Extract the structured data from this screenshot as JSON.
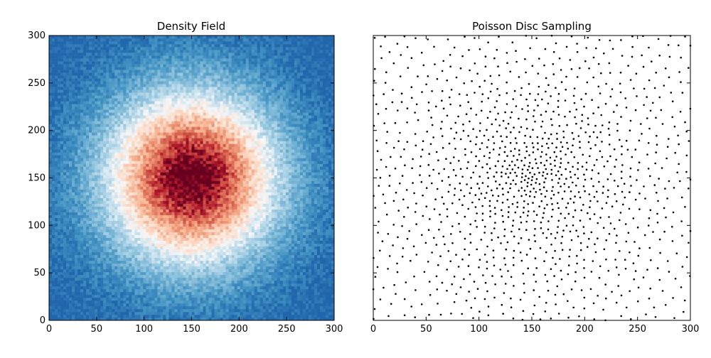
{
  "chart_data": [
    {
      "type": "heatmap",
      "title": "Density Field",
      "xlabel": "",
      "ylabel": "",
      "xlim": [
        0,
        300
      ],
      "ylim": [
        0,
        300
      ],
      "x_ticks": [
        "0",
        "50",
        "100",
        "150",
        "200",
        "250",
        "300"
      ],
      "y_ticks": [
        "0",
        "50",
        "100",
        "150",
        "200",
        "250",
        "300"
      ],
      "colormap": "RdBu_r",
      "center": [
        150,
        150
      ],
      "grid": false,
      "colors": {
        "low": "#2166ac",
        "mid": "#f7f7f7",
        "high": "#67001f"
      }
    },
    {
      "type": "scatter",
      "title": "Poisson Disc Sampling",
      "xlabel": "",
      "ylabel": "",
      "xlim": [
        0,
        300
      ],
      "ylim": [
        0,
        300
      ],
      "x_ticks": [
        "0",
        "50",
        "100",
        "150",
        "200",
        "250",
        "300"
      ],
      "y_ticks": [],
      "point_color": "#000000",
      "center": [
        150,
        150
      ],
      "approx_point_count": 1200,
      "grid": false
    }
  ]
}
